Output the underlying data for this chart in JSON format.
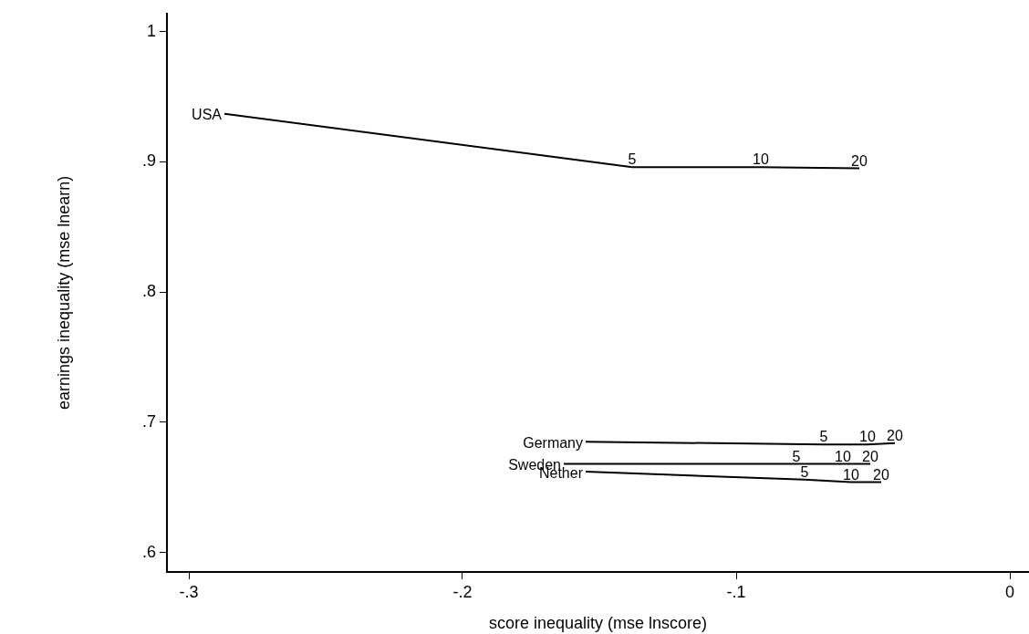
{
  "chart_data": {
    "type": "line",
    "xlabel": "score inequality (mse lnscore)",
    "ylabel": "earnings inequality (mse lnearn)",
    "xlim": [
      -0.308,
      0.007
    ],
    "ylim": [
      0.585,
      1.014
    ],
    "xticks": [
      {
        "value": -0.3,
        "label": "-.3"
      },
      {
        "value": -0.2,
        "label": "-.2"
      },
      {
        "value": -0.1,
        "label": "-.1"
      },
      0
    ],
    "yticks": [
      {
        "value": 0.6,
        "label": ".6"
      },
      {
        "value": 0.7,
        "label": ".7"
      },
      {
        "value": 0.8,
        "label": ".8"
      },
      {
        "value": 0.9,
        "label": ".9"
      },
      1
    ],
    "annotations": [
      {
        "text": "5",
        "x": -0.138,
        "y": 0.896
      },
      {
        "text": "10",
        "x": -0.091,
        "y": 0.896
      },
      {
        "text": "20",
        "x": -0.055,
        "y": 0.895
      },
      {
        "text": "5",
        "x": -0.068,
        "y": 0.683
      },
      {
        "text": "10",
        "x": -0.052,
        "y": 0.683
      },
      {
        "text": "20",
        "x": -0.042,
        "y": 0.684
      },
      {
        "text": "5",
        "x": -0.078,
        "y": 0.668
      },
      {
        "text": "10",
        "x": -0.061,
        "y": 0.668
      },
      {
        "text": "20",
        "x": -0.051,
        "y": 0.668
      },
      {
        "text": "5",
        "x": -0.075,
        "y": 0.656
      },
      {
        "text": "10",
        "x": -0.058,
        "y": 0.654
      },
      {
        "text": "20",
        "x": -0.047,
        "y": 0.654
      }
    ],
    "grid": false,
    "legend": false,
    "marker": "none",
    "line_style": "solid",
    "series": [
      {
        "name": "USA",
        "color": "#000000",
        "x": [
          -0.287,
          -0.138,
          -0.091,
          -0.055
        ],
        "values": [
          0.937,
          0.896,
          0.896,
          0.895
        ]
      },
      {
        "name": "Germany",
        "color": "#000000",
        "x": [
          -0.155,
          -0.068,
          -0.052,
          -0.042
        ],
        "values": [
          0.685,
          0.683,
          0.683,
          0.684
        ]
      },
      {
        "name": "Sweden",
        "color": "#000000",
        "x": [
          -0.163,
          -0.078,
          -0.061,
          -0.051
        ],
        "values": [
          0.668,
          0.668,
          0.668,
          0.668
        ]
      },
      {
        "name": "Nether",
        "color": "#000000",
        "x": [
          -0.155,
          -0.075,
          -0.058,
          -0.047
        ],
        "values": [
          0.662,
          0.656,
          0.654,
          0.654
        ]
      }
    ]
  }
}
